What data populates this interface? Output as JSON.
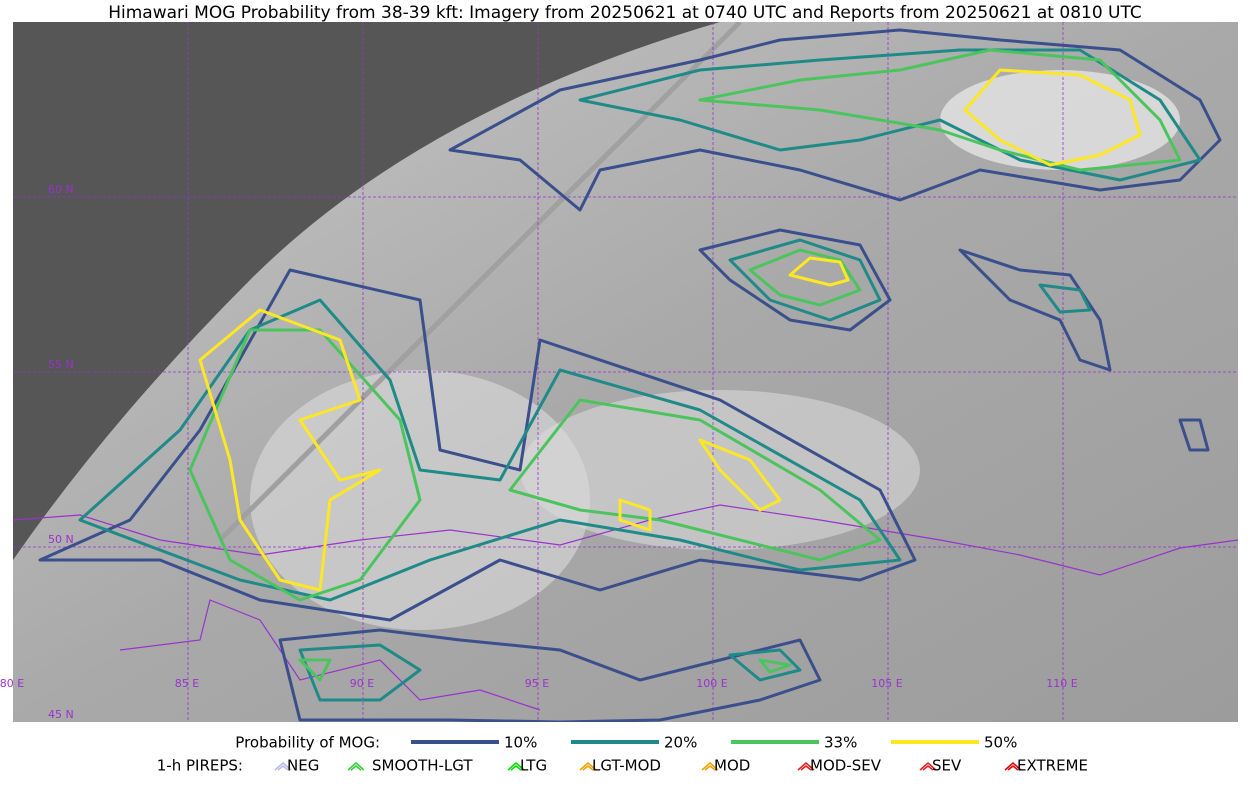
{
  "title": "Himawari MOG Probability from 38-39 kft: Imagery from 20250621 at 0740 UTC and Reports from 20250621 at 0810 UTC",
  "map": {
    "lat_labels": [
      "60 N",
      "55 N",
      "50 N",
      "45 N"
    ],
    "lon_labels": [
      "80 E",
      "85 E",
      "90 E",
      "95 E",
      "100 E",
      "105 E",
      "110 E"
    ]
  },
  "legend": {
    "probability": {
      "label": "Probability of MOG:",
      "items": [
        {
          "label": "10%",
          "color": "#3a4f8c"
        },
        {
          "label": "20%",
          "color": "#1f8a87"
        },
        {
          "label": "33%",
          "color": "#4cc45e"
        },
        {
          "label": "50%",
          "color": "#fde725"
        }
      ]
    },
    "pireps": {
      "label": "1-h PIREPS:",
      "items": [
        {
          "label": "NEG",
          "color": "#b9b9f0"
        },
        {
          "label": "SMOOTH-LGT",
          "color": "#33cc33"
        },
        {
          "label": "LTG",
          "color": "#00dd00"
        },
        {
          "label": "LGT-MOD",
          "color": "#f0a000"
        },
        {
          "label": "MOD",
          "color": "#f0a000"
        },
        {
          "label": "MOD-SEV",
          "color": "#e02020"
        },
        {
          "label": "SEV",
          "color": "#e02020"
        },
        {
          "label": "EXTREME",
          "color": "#e00000"
        }
      ]
    }
  }
}
